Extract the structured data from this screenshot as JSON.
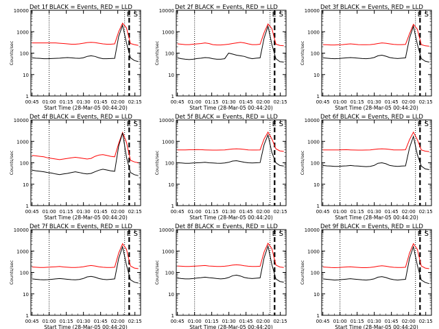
{
  "chart_data": [
    {
      "type": "line",
      "title": "Det 1f BLACK = Events, RED = LLD",
      "xlabel": "Start Time (28-Mar-05 00:44:20)",
      "ylabel": "Counts/sec",
      "yscale": "log",
      "ylim": [
        1,
        10000
      ],
      "x_ticks": [
        "00:45",
        "01:00",
        "01:15",
        "01:30",
        "01:45",
        "02:00",
        "02:15"
      ],
      "y_ticks": [
        "1",
        "10",
        "100",
        "1000",
        "10000"
      ],
      "markers": [
        {
          "type": "dotted",
          "x": "01:00"
        },
        {
          "type": "dotted",
          "x": "02:06"
        },
        {
          "type": "dashed",
          "x": "02:10"
        }
      ],
      "annotations": [
        "E",
        "S"
      ],
      "series": [
        {
          "color": "#ff0000",
          "values": [
            300,
            300,
            300,
            300,
            300,
            300,
            300,
            290,
            280,
            270,
            260,
            260,
            270,
            290,
            310,
            320,
            310,
            290,
            270,
            260,
            260,
            270,
            1000,
            2500,
            1500,
            280,
            250,
            230
          ]
        },
        {
          "color": "#000000",
          "values": [
            60,
            58,
            57,
            55,
            55,
            56,
            57,
            58,
            60,
            62,
            60,
            58,
            57,
            60,
            70,
            75,
            70,
            60,
            55,
            55,
            56,
            57,
            600,
            2000,
            300,
            60,
            45,
            40
          ]
        }
      ]
    },
    {
      "type": "line",
      "title": "Det 2f BLACK = Events, RED = LLD",
      "xlabel": "Start Time (28-Mar-05 00:44:20)",
      "ylabel": "Counts/sec",
      "yscale": "log",
      "ylim": [
        1,
        10000
      ],
      "x_ticks": [
        "00:45",
        "01:00",
        "01:15",
        "01:30",
        "01:45",
        "02:00",
        "02:15"
      ],
      "y_ticks": [
        "1",
        "10",
        "100",
        "1000",
        "10000"
      ],
      "markers": [
        {
          "type": "dotted",
          "x": "01:00"
        },
        {
          "type": "dotted",
          "x": "02:06"
        },
        {
          "type": "dashed",
          "x": "02:10"
        }
      ],
      "annotations": [
        "E",
        "S"
      ],
      "series": [
        {
          "color": "#ff0000",
          "values": [
            270,
            260,
            250,
            250,
            260,
            270,
            280,
            300,
            280,
            250,
            240,
            240,
            250,
            260,
            280,
            300,
            320,
            300,
            270,
            250,
            250,
            260,
            900,
            2300,
            1400,
            260,
            230,
            220
          ]
        },
        {
          "color": "#000000",
          "values": [
            60,
            55,
            52,
            50,
            52,
            56,
            58,
            62,
            60,
            55,
            52,
            52,
            55,
            100,
            90,
            80,
            75,
            70,
            60,
            55,
            58,
            60,
            500,
            1800,
            250,
            55,
            40,
            38
          ]
        }
      ]
    },
    {
      "type": "line",
      "title": "Det 3f BLACK = Events, RED = LLD",
      "xlabel": "Start Time (28-Mar-05 00:44:20)",
      "ylabel": "Counts/sec",
      "yscale": "log",
      "ylim": [
        1,
        10000
      ],
      "x_ticks": [
        "00:45",
        "01:00",
        "01:15",
        "01:30",
        "01:45",
        "02:00",
        "02:15"
      ],
      "y_ticks": [
        "1",
        "10",
        "100",
        "1000",
        "10000"
      ],
      "markers": [
        {
          "type": "dotted",
          "x": "01:00"
        },
        {
          "type": "dotted",
          "x": "02:06"
        },
        {
          "type": "dashed",
          "x": "02:10"
        }
      ],
      "annotations": [
        "E",
        "S"
      ],
      "series": [
        {
          "color": "#ff0000",
          "values": [
            250,
            245,
            240,
            240,
            245,
            250,
            260,
            270,
            260,
            250,
            245,
            245,
            250,
            260,
            280,
            300,
            290,
            270,
            255,
            250,
            250,
            255,
            800,
            2200,
            1300,
            250,
            220,
            210
          ]
        },
        {
          "color": "#000000",
          "values": [
            60,
            58,
            56,
            55,
            56,
            58,
            60,
            62,
            60,
            58,
            56,
            55,
            57,
            62,
            75,
            80,
            72,
            62,
            58,
            56,
            58,
            60,
            500,
            1800,
            260,
            55,
            42,
            38
          ]
        }
      ]
    },
    {
      "type": "line",
      "title": "Det 4f BLACK = Events, RED = LLD",
      "xlabel": "Start Time (28-Mar-05 00:44:20)",
      "ylabel": "Counts/sec",
      "yscale": "log",
      "ylim": [
        1,
        10000
      ],
      "x_ticks": [
        "00:45",
        "01:00",
        "01:15",
        "01:30",
        "01:45",
        "02:00",
        "02:15"
      ],
      "y_ticks": [
        "1",
        "10",
        "100",
        "1000",
        "10000"
      ],
      "markers": [
        {
          "type": "dotted",
          "x": "01:00"
        },
        {
          "type": "dotted",
          "x": "02:06"
        },
        {
          "type": "dashed",
          "x": "02:10"
        }
      ],
      "annotations": [
        "E",
        "S"
      ],
      "series": [
        {
          "color": "#ff0000",
          "values": [
            220,
            210,
            200,
            190,
            170,
            160,
            150,
            140,
            150,
            160,
            170,
            180,
            170,
            160,
            150,
            160,
            200,
            230,
            240,
            220,
            200,
            190,
            800,
            2600,
            900,
            130,
            110,
            100
          ]
        },
        {
          "color": "#000000",
          "values": [
            45,
            42,
            40,
            38,
            35,
            33,
            30,
            28,
            30,
            32,
            35,
            38,
            35,
            32,
            30,
            32,
            38,
            45,
            50,
            46,
            42,
            40,
            600,
            2500,
            180,
            35,
            28,
            25
          ]
        }
      ]
    },
    {
      "type": "line",
      "title": "Det 5f BLACK = Events, RED = LLD",
      "xlabel": "Start Time (28-Mar-05 00:44:20)",
      "ylabel": "Counts/sec",
      "yscale": "log",
      "ylim": [
        1,
        10000
      ],
      "x_ticks": [
        "00:45",
        "01:00",
        "01:15",
        "01:30",
        "01:45",
        "02:00",
        "02:15"
      ],
      "y_ticks": [
        "1",
        "10",
        "100",
        "1000",
        "10000"
      ],
      "markers": [
        {
          "type": "dotted",
          "x": "01:00"
        },
        {
          "type": "dotted",
          "x": "02:06"
        },
        {
          "type": "dashed",
          "x": "02:10"
        }
      ],
      "annotations": [
        "E",
        "S"
      ],
      "series": [
        {
          "color": "#ff0000",
          "values": [
            400,
            400,
            400,
            405,
            410,
            415,
            410,
            400,
            395,
            390,
            390,
            395,
            400,
            420,
            440,
            450,
            440,
            420,
            400,
            395,
            395,
            400,
            1300,
            2700,
            1300,
            450,
            360,
            340
          ]
        },
        {
          "color": "#000000",
          "values": [
            100,
            98,
            95,
            95,
            98,
            100,
            102,
            105,
            100,
            98,
            96,
            95,
            98,
            105,
            120,
            125,
            115,
            105,
            100,
            98,
            100,
            102,
            700,
            2000,
            300,
            100,
            75,
            70
          ]
        }
      ]
    },
    {
      "type": "line",
      "title": "Det 6f BLACK = Events, RED = LLD",
      "xlabel": "Start Time (28-Mar-05 00:44:20)",
      "ylabel": "Counts/sec",
      "yscale": "log",
      "ylim": [
        1,
        10000
      ],
      "x_ticks": [
        "00:45",
        "01:00",
        "01:15",
        "01:30",
        "01:45",
        "02:00",
        "02:15"
      ],
      "y_ticks": [
        "1",
        "10",
        "100",
        "1000",
        "10000"
      ],
      "markers": [
        {
          "type": "dotted",
          "x": "01:00"
        },
        {
          "type": "dotted",
          "x": "02:06"
        },
        {
          "type": "dashed",
          "x": "02:10"
        }
      ],
      "annotations": [
        "E",
        "S"
      ],
      "series": [
        {
          "color": "#ff0000",
          "values": [
            400,
            400,
            400,
            400,
            400,
            405,
            410,
            400,
            395,
            390,
            390,
            395,
            400,
            420,
            440,
            450,
            440,
            420,
            400,
            400,
            400,
            405,
            1200,
            2700,
            1200,
            400,
            350,
            330
          ]
        },
        {
          "color": "#000000",
          "values": [
            75,
            72,
            70,
            68,
            68,
            70,
            72,
            75,
            72,
            70,
            68,
            66,
            68,
            75,
            95,
            100,
            90,
            75,
            70,
            68,
            70,
            72,
            500,
            1700,
            240,
            70,
            52,
            48
          ]
        }
      ]
    },
    {
      "type": "line",
      "title": "Det 7f BLACK = Events, RED = LLD",
      "xlabel": "Start Time (28-Mar-05 00:44:20)",
      "ylabel": "Counts/sec",
      "yscale": "log",
      "ylim": [
        1,
        10000
      ],
      "x_ticks": [
        "00:45",
        "01:00",
        "01:15",
        "01:30",
        "01:45",
        "02:00",
        "02:15"
      ],
      "y_ticks": [
        "1",
        "10",
        "100",
        "1000",
        "10000"
      ],
      "markers": [
        {
          "type": "dotted",
          "x": "01:00"
        },
        {
          "type": "dotted",
          "x": "02:06"
        },
        {
          "type": "dashed",
          "x": "02:10"
        }
      ],
      "annotations": [
        "E",
        "S"
      ],
      "series": [
        {
          "color": "#ff0000",
          "values": [
            180,
            175,
            170,
            170,
            175,
            180,
            185,
            190,
            180,
            175,
            170,
            170,
            175,
            185,
            200,
            210,
            200,
            185,
            175,
            170,
            170,
            175,
            800,
            2200,
            1200,
            200,
            160,
            150
          ]
        },
        {
          "color": "#000000",
          "values": [
            50,
            48,
            46,
            45,
            46,
            48,
            50,
            52,
            50,
            48,
            46,
            45,
            47,
            52,
            62,
            65,
            60,
            52,
            48,
            46,
            48,
            50,
            450,
            1600,
            220,
            45,
            35,
            32
          ]
        }
      ]
    },
    {
      "type": "line",
      "title": "Det 8f BLACK = Events, RED = LLD",
      "xlabel": "Start Time (28-Mar-05 00:44:20)",
      "ylabel": "Counts/sec",
      "yscale": "log",
      "ylim": [
        1,
        10000
      ],
      "x_ticks": [
        "00:45",
        "01:00",
        "01:15",
        "01:30",
        "01:45",
        "02:00",
        "02:15"
      ],
      "y_ticks": [
        "1",
        "10",
        "100",
        "1000",
        "10000"
      ],
      "markers": [
        {
          "type": "dotted",
          "x": "01:00"
        },
        {
          "type": "dotted",
          "x": "02:06"
        },
        {
          "type": "dashed",
          "x": "02:10"
        }
      ],
      "annotations": [
        "E",
        "S"
      ],
      "series": [
        {
          "color": "#ff0000",
          "values": [
            200,
            195,
            190,
            190,
            195,
            200,
            205,
            210,
            200,
            195,
            190,
            190,
            195,
            205,
            220,
            230,
            220,
            205,
            195,
            190,
            190,
            195,
            900,
            2300,
            1300,
            220,
            180,
            170
          ]
        },
        {
          "color": "#000000",
          "values": [
            55,
            52,
            50,
            50,
            52,
            55,
            57,
            60,
            57,
            55,
            52,
            50,
            52,
            58,
            70,
            75,
            68,
            58,
            54,
            52,
            54,
            56,
            480,
            1700,
            230,
            50,
            38,
            35
          ]
        }
      ]
    },
    {
      "type": "line",
      "title": "Det 9f BLACK = Events, RED = LLD",
      "xlabel": "Start Time (28-Mar-05 00:44:20)",
      "ylabel": "Counts/sec",
      "yscale": "log",
      "ylim": [
        1,
        10000
      ],
      "x_ticks": [
        "00:45",
        "01:00",
        "01:15",
        "01:30",
        "01:45",
        "02:00",
        "02:15"
      ],
      "y_ticks": [
        "1",
        "10",
        "100",
        "1000",
        "10000"
      ],
      "markers": [
        {
          "type": "dotted",
          "x": "01:00"
        },
        {
          "type": "dotted",
          "x": "02:06"
        },
        {
          "type": "dashed",
          "x": "02:10"
        }
      ],
      "annotations": [
        "E",
        "S"
      ],
      "series": [
        {
          "color": "#ff0000",
          "values": [
            180,
            175,
            170,
            168,
            170,
            175,
            180,
            185,
            178,
            172,
            168,
            168,
            172,
            180,
            195,
            205,
            195,
            182,
            174,
            170,
            170,
            175,
            800,
            2200,
            1200,
            200,
            160,
            150
          ]
        },
        {
          "color": "#000000",
          "values": [
            50,
            48,
            46,
            44,
            45,
            47,
            49,
            51,
            49,
            47,
            45,
            44,
            46,
            50,
            60,
            64,
            58,
            50,
            46,
            44,
            46,
            48,
            450,
            1600,
            220,
            44,
            34,
            30
          ]
        }
      ]
    }
  ]
}
